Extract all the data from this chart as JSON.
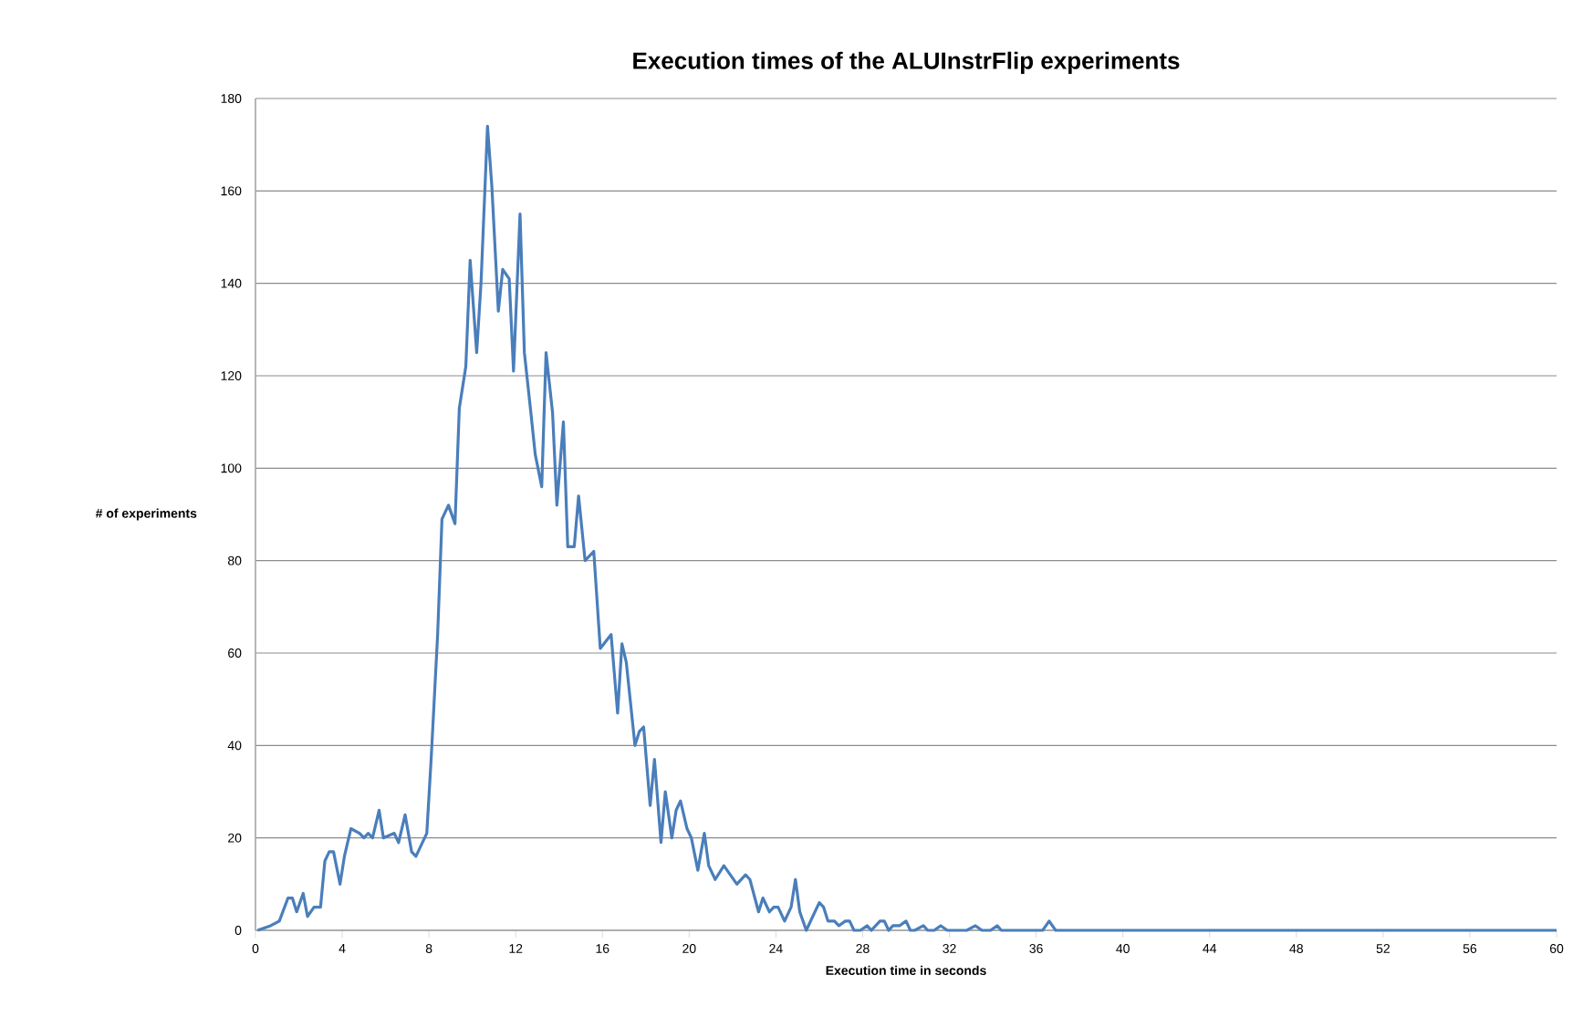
{
  "chart_data": {
    "type": "line",
    "title": "Execution times of the ALUInstrFlip experiments",
    "xlabel": "Execution time in seconds",
    "ylabel": "# of experiments",
    "x": [
      0.1,
      0.7,
      1.1,
      1.5,
      1.7,
      1.9,
      2.2,
      2.4,
      2.7,
      3.0,
      3.2,
      3.4,
      3.6,
      3.9,
      4.1,
      4.4,
      4.8,
      5.0,
      5.2,
      5.4,
      5.7,
      5.9,
      6.4,
      6.6,
      6.9,
      7.2,
      7.4,
      7.9,
      8.1,
      8.4,
      8.6,
      8.9,
      9.2,
      9.4,
      9.7,
      9.9,
      10.2,
      10.4,
      10.7,
      10.9,
      11.2,
      11.4,
      11.7,
      11.9,
      12.2,
      12.4,
      12.7,
      12.9,
      13.2,
      13.4,
      13.7,
      13.9,
      14.2,
      14.4,
      14.7,
      14.9,
      15.2,
      15.6,
      15.9,
      16.4,
      16.7,
      16.9,
      17.1,
      17.5,
      17.7,
      17.9,
      18.2,
      18.4,
      18.7,
      18.9,
      19.2,
      19.4,
      19.6,
      19.9,
      20.1,
      20.4,
      20.7,
      20.9,
      21.2,
      21.6,
      22.2,
      22.6,
      22.8,
      23.2,
      23.4,
      23.7,
      23.9,
      24.1,
      24.4,
      24.7,
      24.9,
      25.1,
      25.4,
      25.7,
      26.0,
      26.2,
      26.4,
      26.7,
      26.9,
      27.2,
      27.4,
      27.6,
      27.9,
      28.2,
      28.4,
      28.8,
      29.0,
      29.2,
      29.4,
      29.7,
      30.0,
      30.2,
      30.4,
      30.8,
      31.0,
      31.3,
      31.6,
      31.9,
      32.8,
      33.2,
      33.5,
      33.9,
      34.2,
      34.4,
      36.3,
      36.6,
      36.9,
      60
    ],
    "series": [
      {
        "color": "#4a7ebb",
        "values": [
          0,
          1,
          2,
          7,
          7,
          4,
          8,
          3,
          5,
          5,
          15,
          17,
          17,
          10,
          16,
          22,
          21,
          20,
          21,
          20,
          26,
          20,
          21,
          19,
          25,
          17,
          16,
          21,
          37,
          64,
          89,
          92,
          88,
          113,
          122,
          145,
          125,
          140,
          174,
          161,
          134,
          143,
          141,
          121,
          155,
          125,
          112,
          103,
          96,
          125,
          112,
          92,
          110,
          83,
          83,
          94,
          80,
          82,
          61,
          64,
          47,
          62,
          58,
          40,
          43,
          44,
          27,
          37,
          19,
          30,
          20,
          26,
          28,
          22,
          20,
          13,
          21,
          14,
          11,
          14,
          10,
          12,
          11,
          4,
          7,
          4,
          5,
          5,
          2,
          5,
          11,
          4,
          0,
          3,
          6,
          5,
          2,
          2,
          1,
          2,
          2,
          0,
          0,
          1,
          0,
          2,
          2,
          0,
          1,
          1,
          2,
          0,
          0,
          1,
          0,
          0,
          1,
          0,
          0,
          1,
          0,
          0,
          1,
          0,
          0,
          2,
          0,
          0
        ]
      }
    ],
    "xlim": [
      0,
      60
    ],
    "xticks": [
      0,
      4,
      8,
      12,
      16,
      20,
      24,
      28,
      32,
      36,
      40,
      44,
      48,
      52,
      56,
      60
    ],
    "ylim": [
      0,
      180
    ],
    "yticks": [
      0,
      20,
      40,
      60,
      80,
      100,
      120,
      140,
      160,
      180
    ],
    "grid": "y",
    "legend": false,
    "marker": "none",
    "line_style": "solid"
  }
}
